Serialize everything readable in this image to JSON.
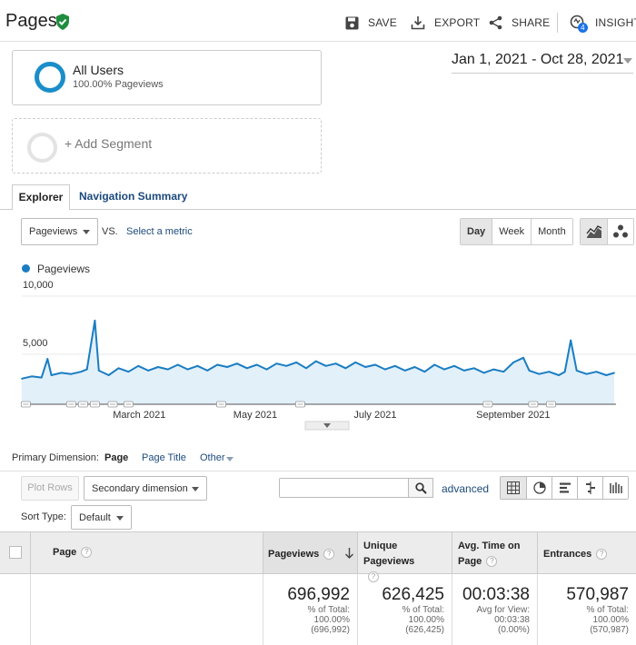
{
  "header": {
    "title": "Pages",
    "actions": {
      "save": "SAVE",
      "export": "EXPORT",
      "share": "SHARE",
      "insights": "INSIGHTS",
      "insights_badge": "4"
    }
  },
  "segments": {
    "primary": {
      "name": "All Users",
      "sub": "100.00% Pageviews"
    },
    "add_label": "+ Add Segment"
  },
  "date_range": "Jan 1, 2021 - Oct 28, 2021",
  "tabs": {
    "explorer": "Explorer",
    "navigation_summary": "Navigation Summary"
  },
  "metric_bar": {
    "metric": "Pageviews",
    "vs": "VS.",
    "select_metric": "Select a metric",
    "granularity": [
      "Day",
      "Week",
      "Month"
    ],
    "active_granularity": "Day"
  },
  "chart_data": {
    "type": "area",
    "series": [
      {
        "name": "Pageviews",
        "color": "#1a7dc2",
        "fill": "#e2f0fa"
      }
    ],
    "ylim": [
      0,
      10000
    ],
    "ytick_labels": [
      "10,000",
      "5,000"
    ],
    "xtick_labels": [
      "March 2021",
      "May 2021",
      "July 2021",
      "September 2021"
    ],
    "x_start": "2021-01-01",
    "x_end": "2021-10-28",
    "points": [
      [
        "2021-01-01",
        2200
      ],
      [
        "2021-01-06",
        2400
      ],
      [
        "2021-01-11",
        2300
      ],
      [
        "2021-01-14",
        3900
      ],
      [
        "2021-01-16",
        2500
      ],
      [
        "2021-01-21",
        2700
      ],
      [
        "2021-01-26",
        2600
      ],
      [
        "2021-01-31",
        2800
      ],
      [
        "2021-02-03",
        3000
      ],
      [
        "2021-02-07",
        7200
      ],
      [
        "2021-02-09",
        2900
      ],
      [
        "2021-02-14",
        2500
      ],
      [
        "2021-02-19",
        3100
      ],
      [
        "2021-02-24",
        2800
      ],
      [
        "2021-03-01",
        3300
      ],
      [
        "2021-03-06",
        2900
      ],
      [
        "2021-03-11",
        3200
      ],
      [
        "2021-03-16",
        3000
      ],
      [
        "2021-03-21",
        3400
      ],
      [
        "2021-03-26",
        3000
      ],
      [
        "2021-03-31",
        3300
      ],
      [
        "2021-04-05",
        2900
      ],
      [
        "2021-04-10",
        3400
      ],
      [
        "2021-04-15",
        3200
      ],
      [
        "2021-04-20",
        3500
      ],
      [
        "2021-04-25",
        3100
      ],
      [
        "2021-04-30",
        3400
      ],
      [
        "2021-05-05",
        3000
      ],
      [
        "2021-05-10",
        3500
      ],
      [
        "2021-05-15",
        3300
      ],
      [
        "2021-05-20",
        3600
      ],
      [
        "2021-05-25",
        3100
      ],
      [
        "2021-05-30",
        3700
      ],
      [
        "2021-06-04",
        3300
      ],
      [
        "2021-06-09",
        3500
      ],
      [
        "2021-06-14",
        3100
      ],
      [
        "2021-06-19",
        3600
      ],
      [
        "2021-06-24",
        3200
      ],
      [
        "2021-06-29",
        3400
      ],
      [
        "2021-07-04",
        3000
      ],
      [
        "2021-07-09",
        3300
      ],
      [
        "2021-07-14",
        2900
      ],
      [
        "2021-07-19",
        3200
      ],
      [
        "2021-07-24",
        2800
      ],
      [
        "2021-07-29",
        3400
      ],
      [
        "2021-08-03",
        3000
      ],
      [
        "2021-08-08",
        3300
      ],
      [
        "2021-08-13",
        2900
      ],
      [
        "2021-08-18",
        3100
      ],
      [
        "2021-08-23",
        2700
      ],
      [
        "2021-08-28",
        3000
      ],
      [
        "2021-09-02",
        2800
      ],
      [
        "2021-09-07",
        3600
      ],
      [
        "2021-09-12",
        4000
      ],
      [
        "2021-09-15",
        2900
      ],
      [
        "2021-09-20",
        2600
      ],
      [
        "2021-09-25",
        2800
      ],
      [
        "2021-09-30",
        2500
      ],
      [
        "2021-10-03",
        2800
      ],
      [
        "2021-10-06",
        5500
      ],
      [
        "2021-10-09",
        2900
      ],
      [
        "2021-10-14",
        2600
      ],
      [
        "2021-10-19",
        2800
      ],
      [
        "2021-10-24",
        2500
      ],
      [
        "2021-10-28",
        2700
      ]
    ],
    "annotation_markers": [
      "2021-01-03",
      "2021-01-26",
      "2021-02-01",
      "2021-02-07",
      "2021-02-16",
      "2021-02-24",
      "2021-04-12",
      "2021-05-22",
      "2021-08-25",
      "2021-09-17",
      "2021-09-26"
    ]
  },
  "primary_dimension": {
    "label": "Primary Dimension:",
    "options": [
      "Page",
      "Page Title",
      "Other"
    ],
    "active": "Page"
  },
  "toolbar": {
    "plot_rows": "Plot Rows",
    "secondary_dimension": "Secondary dimension",
    "search_placeholder": "",
    "advanced": "advanced",
    "sort_type_label": "Sort Type:",
    "sort_type_value": "Default"
  },
  "table": {
    "columns": [
      {
        "label": "Page"
      },
      {
        "label": "Pageviews"
      },
      {
        "label": "Unique Pageviews"
      },
      {
        "label": "Avg. Time on Page"
      },
      {
        "label": "Entrances"
      }
    ],
    "totals": [
      {
        "value": "696,992",
        "l1": "% of Total:",
        "l2": "100.00%",
        "l3": "(696,992)"
      },
      {
        "value": "626,425",
        "l1": "% of Total:",
        "l2": "100.00%",
        "l3": "(626,425)"
      },
      {
        "value": "00:03:38",
        "l1": "Avg for View:",
        "l2": "00:03:38",
        "l3": "(0.00%)"
      },
      {
        "value": "570,987",
        "l1": "% of Total:",
        "l2": "100.00%",
        "l3": "(570,987)"
      }
    ]
  }
}
